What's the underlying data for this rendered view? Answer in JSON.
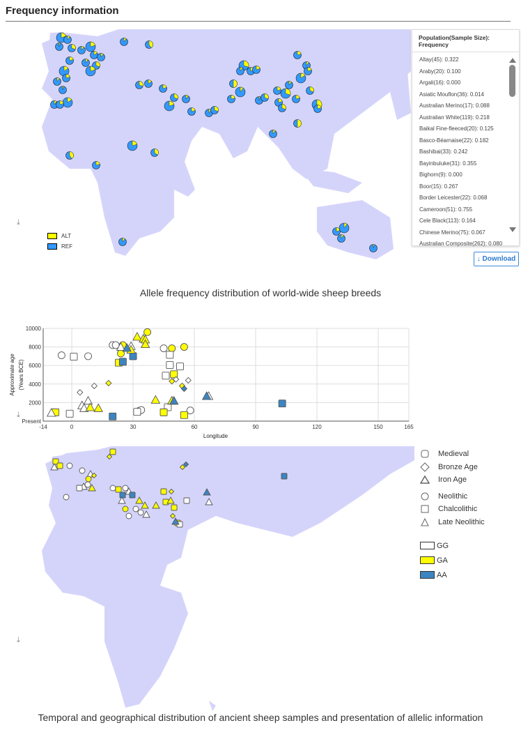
{
  "header": {
    "title": "Frequency information"
  },
  "freq_legend": {
    "heading": "Population(Sample Size): Frequency",
    "items": [
      "Altay(45): 0.322",
      "Araby(20): 0.100",
      "Argali(16): 0.000",
      "Asiatic Mouflon(36): 0.014",
      "Australian Merino(17): 0.088",
      "Australian White(119): 0.218",
      "Baikal Fine-fleeced(20): 0.125",
      "Basco-Béarnaise(22): 0.182",
      "Bashibai(33): 0.242",
      "Bayinbuluke(31): 0.355",
      "Bighorn(9): 0.000",
      "Boor(15): 0.267",
      "Border Leicester(22): 0.068",
      "Cameroon(51): 0.755",
      "Cele Black(113): 0.164",
      "Chinese Merino(75): 0.067",
      "Australian Composite(262): 0.080"
    ]
  },
  "download_label": "↓ Download",
  "map1": {
    "legend": [
      {
        "label": "ALT",
        "color": "#ffff00"
      },
      {
        "label": "REF",
        "color": "#3399ff"
      }
    ],
    "caption": "Allele frequency distribution of world-wide sheep breeds"
  },
  "chart_data": {
    "type": "scatter",
    "xlabel": "Longitude",
    "ylabel": "Approximate age",
    "ylabel2": "(Years BCE)",
    "xlim": [
      -14,
      165
    ],
    "ylim": [
      0,
      10000
    ],
    "xticks": [
      "-14",
      "0",
      "30",
      "60",
      "90",
      "120",
      "150",
      "165"
    ],
    "xtick_values": [
      -14,
      0,
      30,
      60,
      90,
      120,
      150,
      165
    ],
    "yticks": [
      "Present",
      "2000",
      "4000",
      "6000",
      "8000",
      "10000"
    ],
    "ytick_values": [
      0,
      2000,
      4000,
      6000,
      8000,
      10000
    ],
    "points": [
      {
        "x": -5,
        "y": 7100,
        "shape": "circle",
        "g": "GG"
      },
      {
        "x": 8,
        "y": 7000,
        "shape": "circle",
        "g": "GG"
      },
      {
        "x": 20,
        "y": 8200,
        "shape": "circle",
        "g": "GG"
      },
      {
        "x": 21.5,
        "y": 8200,
        "shape": "circle",
        "g": "GG"
      },
      {
        "x": 45,
        "y": 7850,
        "shape": "circle",
        "g": "GG"
      },
      {
        "x": 33,
        "y": 1100,
        "shape": "circle",
        "g": "GG"
      },
      {
        "x": 34,
        "y": 1200,
        "shape": "circle",
        "g": "GG"
      },
      {
        "x": 58,
        "y": 1150,
        "shape": "circle",
        "g": "GG"
      },
      {
        "x": 37,
        "y": 9600,
        "shape": "circle",
        "g": "GA"
      },
      {
        "x": 25,
        "y": 8200,
        "shape": "circle",
        "g": "GA"
      },
      {
        "x": 24,
        "y": 7300,
        "shape": "circle",
        "g": "GA"
      },
      {
        "x": 49,
        "y": 7850,
        "shape": "circle",
        "g": "GA"
      },
      {
        "x": 55,
        "y": 8000,
        "shape": "circle",
        "g": "GA"
      },
      {
        "x": -9,
        "y": 950,
        "shape": "circle",
        "g": "GA"
      },
      {
        "x": 1,
        "y": 6950,
        "shape": "square",
        "g": "GG"
      },
      {
        "x": 48,
        "y": 7150,
        "shape": "square",
        "g": "GG"
      },
      {
        "x": 48,
        "y": 6050,
        "shape": "square",
        "g": "GG"
      },
      {
        "x": 53,
        "y": 5900,
        "shape": "square",
        "g": "GG"
      },
      {
        "x": 46,
        "y": 4900,
        "shape": "square",
        "g": "GG"
      },
      {
        "x": 47,
        "y": 1500,
        "shape": "square",
        "g": "GG"
      },
      {
        "x": -1,
        "y": 800,
        "shape": "square",
        "g": "GG"
      },
      {
        "x": 32,
        "y": 1000,
        "shape": "square",
        "g": "GG"
      },
      {
        "x": 23,
        "y": 6300,
        "shape": "square",
        "g": "GA"
      },
      {
        "x": 50,
        "y": 5050,
        "shape": "square",
        "g": "GA"
      },
      {
        "x": -8,
        "y": 950,
        "shape": "square",
        "g": "GA"
      },
      {
        "x": 45,
        "y": 950,
        "shape": "square",
        "g": "GA"
      },
      {
        "x": 55,
        "y": 650,
        "shape": "square",
        "g": "GA"
      },
      {
        "x": 25,
        "y": 6400,
        "shape": "square",
        "g": "AA"
      },
      {
        "x": 30,
        "y": 7000,
        "shape": "square",
        "g": "AA"
      },
      {
        "x": 20,
        "y": 500,
        "shape": "square",
        "g": "AA"
      },
      {
        "x": 103,
        "y": 1900,
        "shape": "square",
        "g": "AA"
      },
      {
        "x": 4,
        "y": 3100,
        "shape": "diamond",
        "g": "GG"
      },
      {
        "x": 11,
        "y": 3800,
        "shape": "diamond",
        "g": "GG"
      },
      {
        "x": 51,
        "y": 4500,
        "shape": "diamond",
        "g": "GG"
      },
      {
        "x": 57,
        "y": 4400,
        "shape": "diamond",
        "g": "GG"
      },
      {
        "x": 18,
        "y": 4100,
        "shape": "diamond",
        "g": "GA"
      },
      {
        "x": 49,
        "y": 4300,
        "shape": "diamond",
        "g": "GA"
      },
      {
        "x": 54,
        "y": 3800,
        "shape": "diamond",
        "g": "GA"
      },
      {
        "x": 55,
        "y": 3500,
        "shape": "diamond",
        "g": "AA"
      },
      {
        "x": 5,
        "y": 1700,
        "shape": "triangle",
        "g": "GG"
      },
      {
        "x": 6,
        "y": 1400,
        "shape": "triangle",
        "g": "GG"
      },
      {
        "x": 8,
        "y": 2200,
        "shape": "triangle",
        "g": "GG"
      },
      {
        "x": 24,
        "y": 8000,
        "shape": "triangle",
        "g": "GG"
      },
      {
        "x": 29,
        "y": 8100,
        "shape": "triangle",
        "g": "GG"
      },
      {
        "x": -10,
        "y": 900,
        "shape": "triangle",
        "g": "GG"
      },
      {
        "x": 67,
        "y": 2700,
        "shape": "triangle",
        "g": "GG"
      },
      {
        "x": 32,
        "y": 9100,
        "shape": "triangle",
        "g": "GA"
      },
      {
        "x": 35,
        "y": 8900,
        "shape": "triangle",
        "g": "GA"
      },
      {
        "x": 36,
        "y": 8800,
        "shape": "triangle",
        "g": "GA"
      },
      {
        "x": 36,
        "y": 8300,
        "shape": "triangle",
        "g": "GA"
      },
      {
        "x": 29,
        "y": 7700,
        "shape": "triangle",
        "g": "GA"
      },
      {
        "x": 9,
        "y": 1500,
        "shape": "triangle",
        "g": "GA"
      },
      {
        "x": 13,
        "y": 1400,
        "shape": "triangle",
        "g": "GA"
      },
      {
        "x": 41,
        "y": 2300,
        "shape": "triangle",
        "g": "GA"
      },
      {
        "x": 49,
        "y": 2200,
        "shape": "triangle",
        "g": "GA"
      },
      {
        "x": 27,
        "y": 7900,
        "shape": "triangle",
        "g": "AA"
      },
      {
        "x": 50,
        "y": 2200,
        "shape": "triangle",
        "g": "AA"
      },
      {
        "x": 66,
        "y": 2700,
        "shape": "triangle",
        "g": "AA"
      }
    ],
    "colors": {
      "GG": "#ffffff",
      "GA": "#ffff00",
      "AA": "#3d85c0"
    }
  },
  "map2": {
    "periods": [
      "Medieval",
      "Bronze Age",
      "Iron Age",
      "Neolithic",
      "Chalcolithic",
      "Late Neolithic"
    ],
    "genotypes": [
      {
        "label": "GG",
        "color": "#ffffff"
      },
      {
        "label": "GA",
        "color": "#ffff00"
      },
      {
        "label": "AA",
        "color": "#3d85c0"
      }
    ],
    "caption": "Temporal and geographical distribution of ancient sheep samples and presentation of allelic information"
  }
}
